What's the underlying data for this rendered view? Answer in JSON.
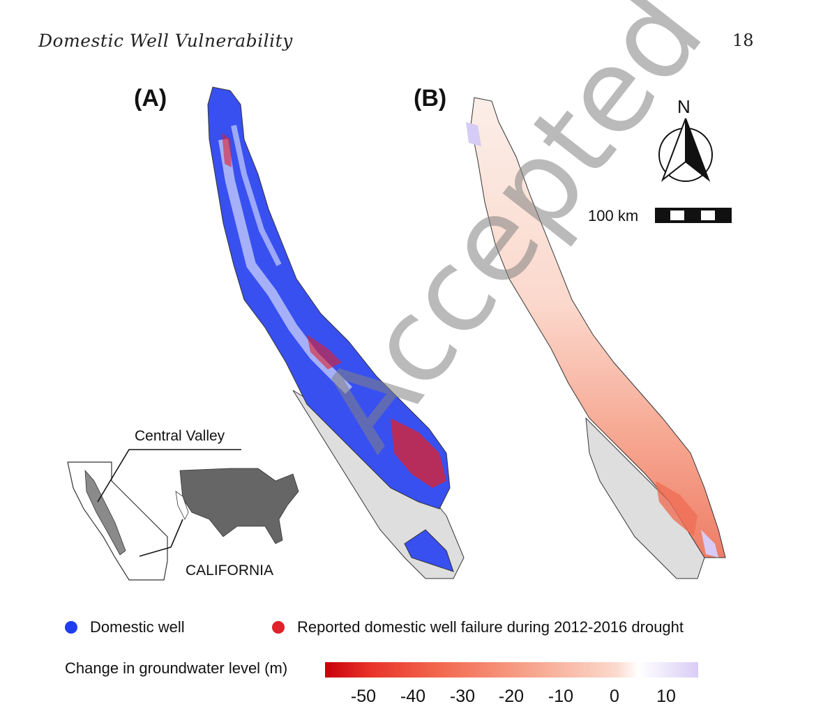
{
  "header": {
    "running_title": "Domestic Well Vulnerability",
    "page_number": "18"
  },
  "panels": {
    "a_label": "(A)",
    "b_label": "(B)"
  },
  "inset": {
    "central_valley_label": "Central Valley",
    "california_label": "CALIFORNIA"
  },
  "map_furniture": {
    "north_label": "N",
    "scale_label": "100 km"
  },
  "legend": {
    "domestic_well": "Domestic well",
    "well_failure": "Reported domestic well failure during 2012-2016 drought",
    "domestic_well_color": "#1f3df0",
    "well_failure_color": "#e0202a"
  },
  "colorbar": {
    "title": "Change in groundwater level (m)",
    "ticks": [
      "-50",
      "-40",
      "-30",
      "-20",
      "-10",
      "0",
      "10"
    ]
  },
  "watermark": "Accepted Manuscript"
}
